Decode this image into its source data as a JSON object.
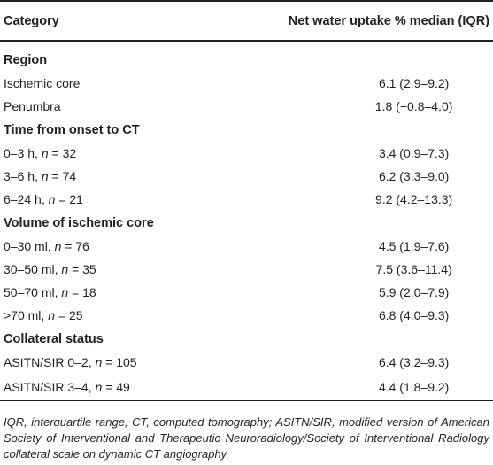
{
  "table": {
    "headers": [
      "Category",
      "Net water uptake % median (IQR)"
    ],
    "sections": [
      {
        "title": "Region",
        "rows": [
          {
            "label": "Ischemic core",
            "value": "6.1 (2.9–9.2)"
          },
          {
            "label": "Penumbra",
            "value": "1.8 (−0.8–4.0)"
          }
        ]
      },
      {
        "title": "Time from onset to CT",
        "rows": [
          {
            "label": "0–3 h, ",
            "n": "n",
            "eq": " = 32",
            "value": "3.4 (0.9–7.3)"
          },
          {
            "label": "3–6 h, ",
            "n": "n",
            "eq": " = 74",
            "value": "6.2 (3.3–9.0)"
          },
          {
            "label": "6–24 h, ",
            "n": "n",
            "eq": " = 21",
            "value": "9.2 (4.2–13.3)"
          }
        ]
      },
      {
        "title": "Volume of ischemic core",
        "rows": [
          {
            "label": "0–30 ml, ",
            "n": "n",
            "eq": " = 76",
            "value": "4.5 (1.9–7.6)"
          },
          {
            "label": "30–50 ml, ",
            "n": "n",
            "eq": " = 35",
            "value": "7.5 (3.6–11.4)"
          },
          {
            "label": "50–70 ml, ",
            "n": "n",
            "eq": " = 18",
            "value": "5.9 (2.0–7.9)"
          },
          {
            "label": ">70 ml, ",
            "n": "n",
            "eq": " = 25",
            "value": "6.8 (4.0–9.3)"
          }
        ]
      },
      {
        "title": "Collateral status",
        "rows": [
          {
            "label": "ASITN/SIR 0–2, ",
            "n": "n",
            "eq": " = 105",
            "value": "6.4 (3.2–9.3)"
          },
          {
            "label": "ASITN/SIR 3–4, ",
            "n": "n",
            "eq": " = 49",
            "value": "4.4 (1.8–9.2)"
          }
        ]
      }
    ]
  },
  "footnote": "IQR, interquartile range; CT, computed tomography; ASITN/SIR, modified version of American Society of Interventional and Therapeutic Neuroradiology/Society of Interventional Radiology collateral scale on dynamic CT angiography."
}
